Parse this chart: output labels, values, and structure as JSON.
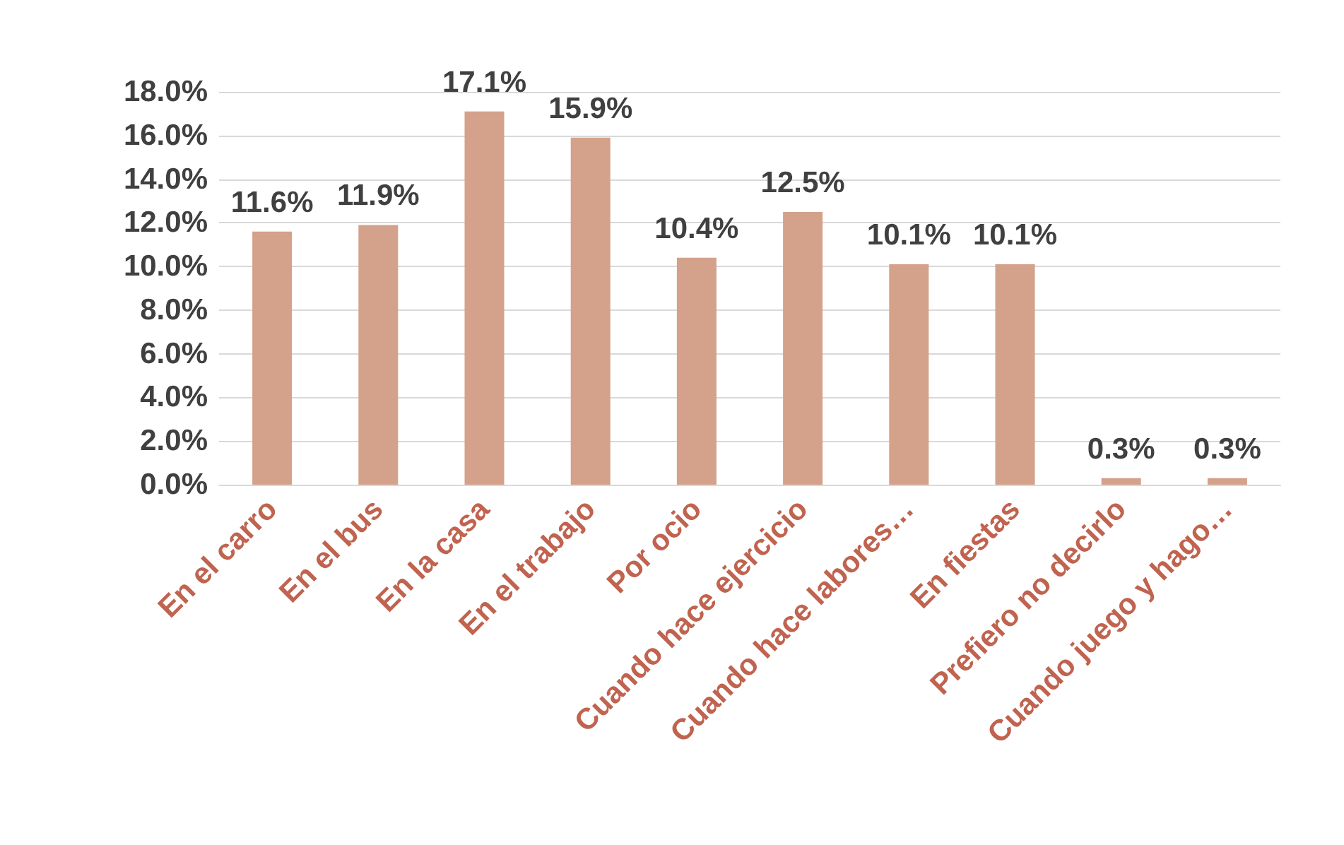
{
  "chart_data": {
    "type": "bar",
    "categories": [
      "En el carro",
      "En el bus",
      "En la casa",
      "En el trabajo",
      "Por ocio",
      "Cuando hace ejercicio",
      "Cuando hace labores…",
      "En fiestas",
      "Prefiero no decirlo",
      "Cuando juego y hago…"
    ],
    "values": [
      11.6,
      11.9,
      17.1,
      15.9,
      10.4,
      12.5,
      10.1,
      10.1,
      0.3,
      0.3
    ],
    "value_labels": [
      "11.6%",
      "11.9%",
      "17.1%",
      "15.9%",
      "10.4%",
      "12.5%",
      "10.1%",
      "10.1%",
      "0.3%",
      "0.3%"
    ],
    "color": "#d4a18a",
    "ylim": [
      0,
      18
    ],
    "yticks": [
      {
        "value": 0,
        "label": "0.0%"
      },
      {
        "value": 2,
        "label": "2.0%"
      },
      {
        "value": 4,
        "label": "4.0%"
      },
      {
        "value": 6,
        "label": "6.0%"
      },
      {
        "value": 8,
        "label": "8.0%"
      },
      {
        "value": 10,
        "label": "10.0%"
      },
      {
        "value": 12,
        "label": "12.0%"
      },
      {
        "value": 14,
        "label": "14.0%"
      },
      {
        "value": 16,
        "label": "16.0%"
      },
      {
        "value": 18,
        "label": "18.0%"
      }
    ],
    "grid": "y"
  }
}
